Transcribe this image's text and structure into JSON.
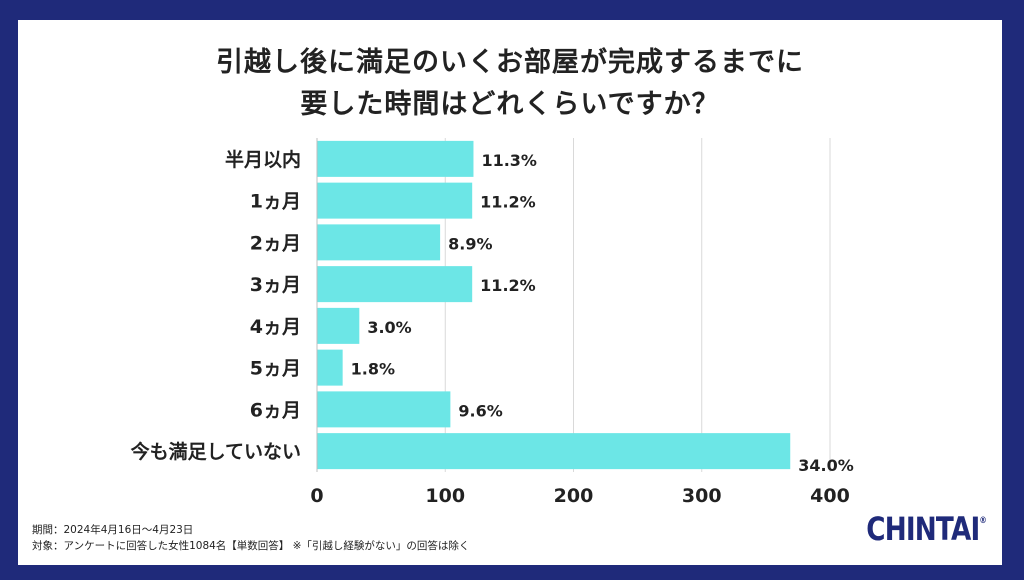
{
  "title": {
    "line1": "引越し後に満足のいくお部屋が完成するまでに",
    "line2": "要した時間はどれくらいですか？"
  },
  "footnote": {
    "period": "期間：2024年4月16日〜4月23日",
    "target": "対象：アンケートに回答した女性1084名【単数回答】 ※「引越し経験がない」の回答は除く"
  },
  "logo": {
    "text": "CHINTAI",
    "mark": "®"
  },
  "colors": {
    "bar": "#6ce6e6",
    "frame": "#1f2a7a",
    "grid": "#d9d9d9",
    "text": "#222222"
  },
  "chart_data": {
    "type": "bar",
    "orientation": "horizontal",
    "categories": [
      "半月以内",
      "1ヵ月",
      "2ヵ月",
      "3ヵ月",
      "4ヵ月",
      "5ヵ月",
      "6ヵ月",
      "今も満足していない"
    ],
    "values": [
      122,
      121,
      96,
      121,
      33,
      20,
      104,
      369
    ],
    "data_labels": [
      "11.3%",
      "11.2%",
      "8.9%",
      "11.2%",
      "3.0%",
      "1.8%",
      "9.6%",
      "34.0%"
    ],
    "xlim": [
      0,
      400
    ],
    "xticks": [
      0,
      100,
      200,
      300,
      400
    ],
    "grid": true,
    "legend": "none"
  }
}
